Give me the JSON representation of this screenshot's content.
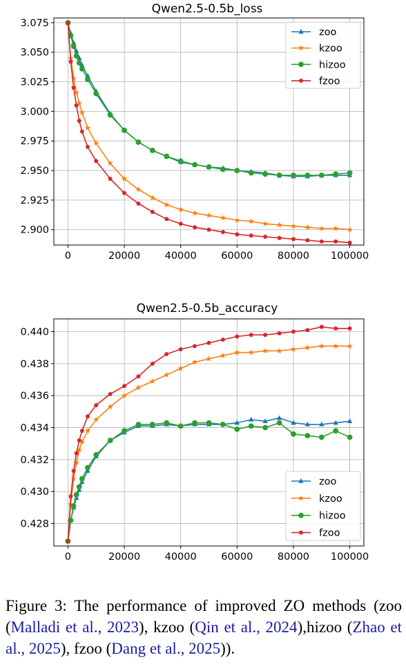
{
  "chart_data": [
    {
      "type": "line",
      "title": "Qwen2.5-0.5b_loss",
      "xlabel": "",
      "ylabel": "",
      "xlim": [
        -5000,
        105000
      ],
      "ylim": [
        2.887,
        3.079
      ],
      "x_ticks": [
        0,
        20000,
        40000,
        60000,
        80000,
        100000
      ],
      "x_tick_labels": [
        "0",
        "20000",
        "40000",
        "60000",
        "80000",
        "100000"
      ],
      "y_ticks": [
        2.9,
        2.925,
        2.95,
        2.975,
        3.0,
        3.025,
        3.05,
        3.075
      ],
      "y_tick_labels": [
        "2.900",
        "2.925",
        "2.950",
        "2.975",
        "3.000",
        "3.025",
        "3.050",
        "3.075"
      ],
      "grid": true,
      "legend_position": "top-right",
      "series": [
        {
          "name": "zoo",
          "color": "#1f77b4",
          "marker": "triangle",
          "x": [
            0,
            1000,
            2000,
            3000,
            4000,
            5000,
            7000,
            10000,
            15000,
            20000,
            25000,
            30000,
            35000,
            40000,
            45000,
            50000,
            55000,
            60000,
            65000,
            70000,
            75000,
            80000,
            85000,
            90000,
            95000,
            100000
          ],
          "values": [
            3.075,
            3.066,
            3.058,
            3.051,
            3.045,
            3.039,
            3.03,
            3.017,
            2.998,
            2.984,
            2.974,
            2.967,
            2.962,
            2.957,
            2.955,
            2.953,
            2.952,
            2.95,
            2.949,
            2.948,
            2.946,
            2.945,
            2.945,
            2.946,
            2.946,
            2.946
          ]
        },
        {
          "name": "kzoo",
          "color": "#ff7f0e",
          "marker": "star",
          "x": [
            0,
            1000,
            2000,
            3000,
            4000,
            5000,
            7000,
            10000,
            15000,
            20000,
            25000,
            30000,
            35000,
            40000,
            45000,
            50000,
            55000,
            60000,
            65000,
            70000,
            75000,
            80000,
            85000,
            90000,
            95000,
            100000
          ],
          "values": [
            3.075,
            3.045,
            3.028,
            3.016,
            3.007,
            2.999,
            2.986,
            2.973,
            2.956,
            2.943,
            2.934,
            2.927,
            2.921,
            2.917,
            2.914,
            2.912,
            2.91,
            2.908,
            2.907,
            2.905,
            2.904,
            2.903,
            2.902,
            2.901,
            2.901,
            2.9
          ]
        },
        {
          "name": "hizoo",
          "color": "#2ca02c",
          "marker": "circle",
          "x": [
            0,
            1000,
            2000,
            3000,
            4000,
            5000,
            7000,
            10000,
            15000,
            20000,
            25000,
            30000,
            35000,
            40000,
            45000,
            50000,
            55000,
            60000,
            65000,
            70000,
            75000,
            80000,
            85000,
            90000,
            95000,
            100000
          ],
          "values": [
            3.075,
            3.064,
            3.055,
            3.047,
            3.041,
            3.036,
            3.027,
            3.015,
            2.997,
            2.984,
            2.974,
            2.967,
            2.962,
            2.958,
            2.955,
            2.953,
            2.951,
            2.95,
            2.948,
            2.947,
            2.946,
            2.946,
            2.946,
            2.946,
            2.947,
            2.948
          ]
        },
        {
          "name": "fzoo",
          "color": "#d62728",
          "marker": "pentagon",
          "x": [
            0,
            1000,
            2000,
            3000,
            4000,
            5000,
            7000,
            10000,
            15000,
            20000,
            25000,
            30000,
            35000,
            40000,
            45000,
            50000,
            55000,
            60000,
            65000,
            70000,
            75000,
            80000,
            85000,
            90000,
            95000,
            100000
          ],
          "values": [
            3.075,
            3.042,
            3.02,
            3.005,
            2.992,
            2.983,
            2.97,
            2.958,
            2.943,
            2.931,
            2.922,
            2.915,
            2.909,
            2.905,
            2.902,
            2.9,
            2.898,
            2.896,
            2.895,
            2.894,
            2.893,
            2.892,
            2.891,
            2.89,
            2.89,
            2.889
          ]
        }
      ]
    },
    {
      "type": "line",
      "title": "Qwen2.5-0.5b_accuracy",
      "xlabel": "",
      "ylabel": "",
      "xlim": [
        -5000,
        105000
      ],
      "ylim": [
        0.4266,
        0.4408
      ],
      "x_ticks": [
        0,
        20000,
        40000,
        60000,
        80000,
        100000
      ],
      "x_tick_labels": [
        "0",
        "20000",
        "40000",
        "60000",
        "80000",
        "100000"
      ],
      "y_ticks": [
        0.428,
        0.43,
        0.432,
        0.434,
        0.436,
        0.438,
        0.44
      ],
      "y_tick_labels": [
        "0.428",
        "0.430",
        "0.432",
        "0.434",
        "0.436",
        "0.438",
        "0.440"
      ],
      "grid": true,
      "legend_position": "bottom-right",
      "series": [
        {
          "name": "zoo",
          "color": "#1f77b4",
          "marker": "triangle",
          "x": [
            0,
            1000,
            2000,
            3000,
            4000,
            5000,
            7000,
            10000,
            15000,
            20000,
            25000,
            30000,
            35000,
            40000,
            45000,
            50000,
            55000,
            60000,
            65000,
            70000,
            75000,
            80000,
            85000,
            90000,
            95000,
            100000
          ],
          "values": [
            0.4269,
            0.4282,
            0.429,
            0.4296,
            0.4301,
            0.4306,
            0.4313,
            0.4322,
            0.4332,
            0.4337,
            0.4341,
            0.4341,
            0.4342,
            0.4341,
            0.4342,
            0.4342,
            0.4342,
            0.4343,
            0.4345,
            0.4344,
            0.4346,
            0.4343,
            0.4342,
            0.4342,
            0.4343,
            0.4344
          ]
        },
        {
          "name": "kzoo",
          "color": "#ff7f0e",
          "marker": "star",
          "x": [
            0,
            1000,
            2000,
            3000,
            4000,
            5000,
            7000,
            10000,
            15000,
            20000,
            25000,
            30000,
            35000,
            40000,
            45000,
            50000,
            55000,
            60000,
            65000,
            70000,
            75000,
            80000,
            85000,
            90000,
            95000,
            100000
          ],
          "values": [
            0.4269,
            0.4292,
            0.4308,
            0.4318,
            0.4326,
            0.4331,
            0.4338,
            0.4345,
            0.4353,
            0.436,
            0.4365,
            0.4369,
            0.4373,
            0.4377,
            0.4381,
            0.4383,
            0.4385,
            0.4387,
            0.4387,
            0.4388,
            0.4388,
            0.4389,
            0.439,
            0.4391,
            0.4391,
            0.4391
          ]
        },
        {
          "name": "hizoo",
          "color": "#2ca02c",
          "marker": "circle",
          "x": [
            0,
            1000,
            2000,
            3000,
            4000,
            5000,
            7000,
            10000,
            15000,
            20000,
            25000,
            30000,
            35000,
            40000,
            45000,
            50000,
            55000,
            60000,
            65000,
            70000,
            75000,
            80000,
            85000,
            90000,
            95000,
            100000
          ],
          "values": [
            0.4269,
            0.4282,
            0.4291,
            0.4298,
            0.4303,
            0.4308,
            0.4315,
            0.4323,
            0.4332,
            0.4338,
            0.4342,
            0.4342,
            0.4343,
            0.4341,
            0.4343,
            0.4343,
            0.4342,
            0.4339,
            0.4341,
            0.434,
            0.4343,
            0.4336,
            0.4335,
            0.4334,
            0.4338,
            0.4334
          ]
        },
        {
          "name": "fzoo",
          "color": "#d62728",
          "marker": "pentagon",
          "x": [
            0,
            1000,
            2000,
            3000,
            4000,
            5000,
            7000,
            10000,
            15000,
            20000,
            25000,
            30000,
            35000,
            40000,
            45000,
            50000,
            55000,
            60000,
            65000,
            70000,
            75000,
            80000,
            85000,
            90000,
            95000,
            100000
          ],
          "values": [
            0.4269,
            0.4297,
            0.4313,
            0.4324,
            0.4332,
            0.4338,
            0.4347,
            0.4354,
            0.4361,
            0.4366,
            0.4372,
            0.438,
            0.4386,
            0.4389,
            0.4391,
            0.4393,
            0.4395,
            0.4397,
            0.4398,
            0.4398,
            0.4399,
            0.44,
            0.4401,
            0.4403,
            0.4402,
            0.4402
          ]
        }
      ]
    }
  ],
  "caption": {
    "lead": "Figure 3:  The performance of improved ZO methods (zoo (",
    "cite1": "Malladi et al., 2023",
    "mid1": "), kzoo (",
    "cite2": "Qin et al., 2024",
    "mid2": "),hizoo (",
    "cite3": "Zhao et al., 2025",
    "mid3": "), fzoo (",
    "cite4": "Dang et al., 2025",
    "tail": "))."
  }
}
